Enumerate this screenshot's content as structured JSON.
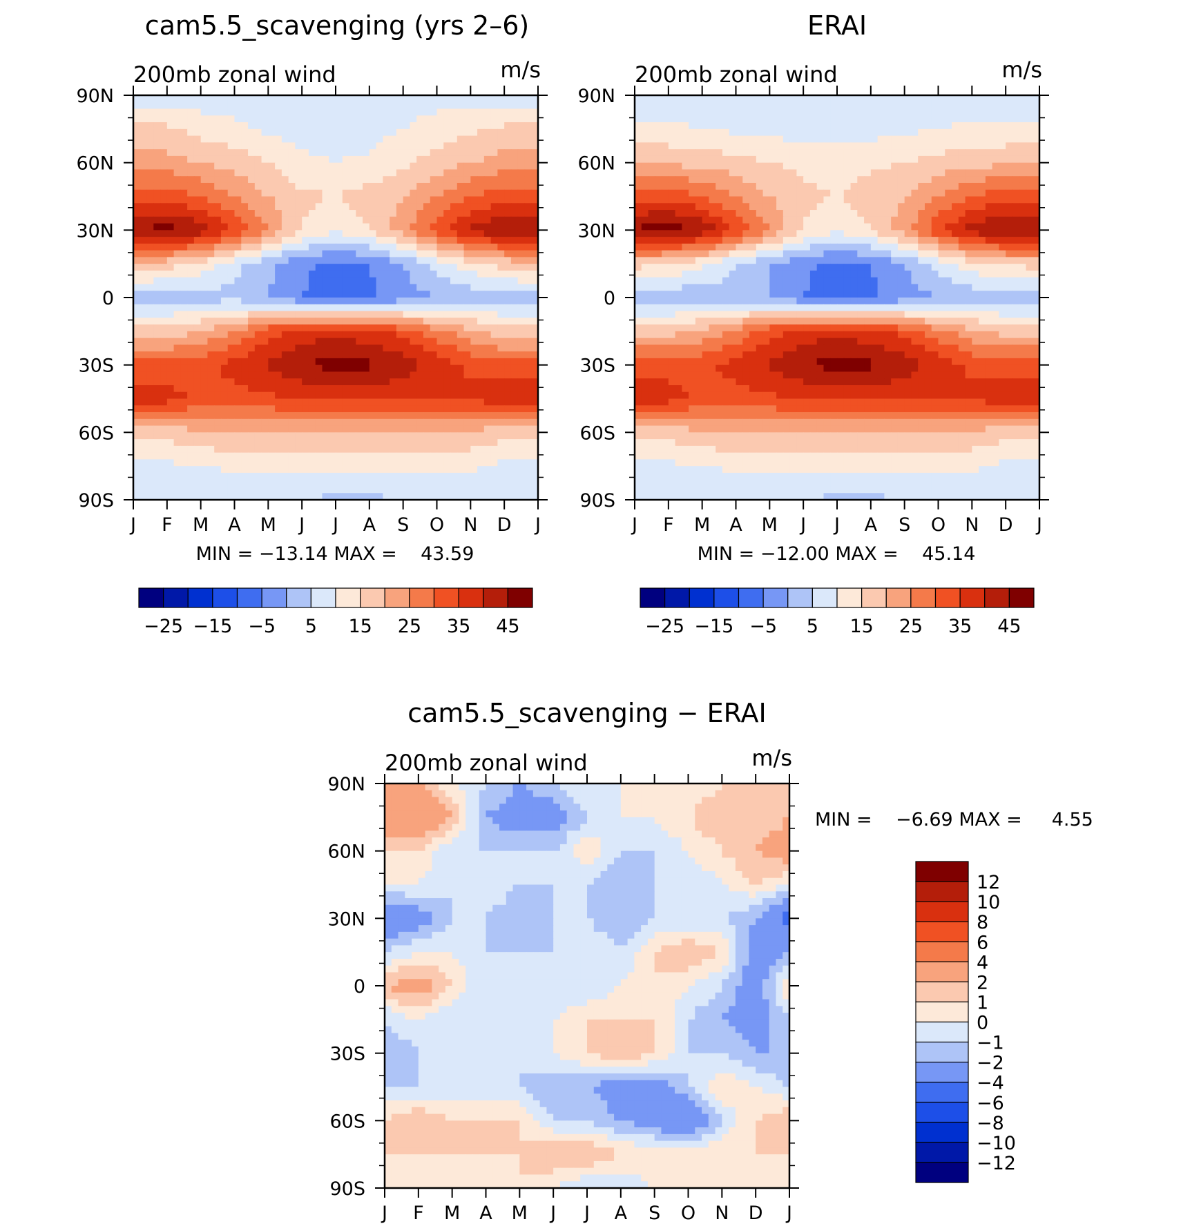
{
  "palette_abs": [
    "#00007f",
    "#0018a8",
    "#0030d0",
    "#1d4fe8",
    "#3f6df0",
    "#7797f5",
    "#aec4f7",
    "#dbe8fa",
    "#fde9d9",
    "#fbc9b0",
    "#f8a37d",
    "#f47a4a",
    "#f05123",
    "#d9300f",
    "#b41e0a",
    "#7f0000"
  ],
  "palette_diff": [
    "#00007f",
    "#0018a8",
    "#0030d0",
    "#1d4fe8",
    "#3f6df0",
    "#7797f5",
    "#aec4f7",
    "#dbe8fa",
    "#fde9d9",
    "#fbc9b0",
    "#f8a37d",
    "#f47a4a",
    "#f05123",
    "#d9300f",
    "#b41e0a",
    "#7f0000"
  ],
  "charts": [
    {
      "id": "model",
      "title": "cam5.5_scavenging (yrs 2–6)",
      "subtitle": "200mb zonal wind",
      "units": "m/s",
      "stats": "MIN = −13.14 MAX =    43.59",
      "min": -13.14,
      "max": 43.59,
      "xticks": [
        "J",
        "F",
        "M",
        "A",
        "M",
        "J",
        "J",
        "A",
        "S",
        "O",
        "N",
        "D",
        "J"
      ],
      "yticks": [
        "90N",
        "60N",
        "30N",
        "0",
        "30S",
        "60S",
        "90S"
      ],
      "colorbar_labels": [
        "−25",
        "−15",
        "−5",
        "5",
        "15",
        "25",
        "35",
        "45"
      ]
    },
    {
      "id": "obs",
      "title": "ERAI",
      "subtitle": "200mb zonal wind",
      "units": "m/s",
      "stats": "MIN = −12.00 MAX =    45.14",
      "min": -12.0,
      "max": 45.14,
      "xticks": [
        "J",
        "F",
        "M",
        "A",
        "M",
        "J",
        "J",
        "A",
        "S",
        "O",
        "N",
        "D",
        "J"
      ],
      "yticks": [
        "90N",
        "60N",
        "30N",
        "0",
        "30S",
        "60S",
        "90S"
      ],
      "colorbar_labels": [
        "−25",
        "−15",
        "−5",
        "5",
        "15",
        "25",
        "35",
        "45"
      ]
    },
    {
      "id": "diff",
      "title": "cam5.5_scavenging − ERAI",
      "subtitle": "200mb zonal wind",
      "units": "m/s",
      "stats": "MIN =    −6.69 MAX =     4.55",
      "min": -6.69,
      "max": 4.55,
      "xticks": [
        "J",
        "F",
        "M",
        "A",
        "M",
        "J",
        "J",
        "A",
        "S",
        "O",
        "N",
        "D",
        "J"
      ],
      "yticks": [
        "90N",
        "60N",
        "30N",
        "0",
        "30S",
        "60S",
        "90S"
      ],
      "colorbar_labels": [
        "12",
        "10",
        "8",
        "6",
        "4",
        "2",
        "1",
        "0",
        "−1",
        "−2",
        "−4",
        "−6",
        "−8",
        "−10",
        "−12"
      ]
    }
  ],
  "chart_data": [
    {
      "type": "heatmap",
      "title": "cam5.5_scavenging (yrs 2–6)",
      "subtitle": "200mb zonal wind",
      "units": "m/s",
      "x": [
        "J",
        "F",
        "M",
        "A",
        "M",
        "J",
        "J",
        "A",
        "S",
        "O",
        "N",
        "D",
        "J"
      ],
      "y": [
        90,
        75,
        60,
        45,
        30,
        15,
        0,
        -15,
        -30,
        -45,
        -60,
        -75,
        -90
      ],
      "ylim": [
        -90,
        90
      ],
      "levels": [
        -30,
        -25,
        -20,
        -15,
        -10,
        -5,
        0,
        5,
        10,
        15,
        20,
        25,
        30,
        35,
        40,
        45
      ],
      "values": [
        [
          2,
          2,
          2,
          3,
          4,
          4,
          4,
          3,
          3,
          3,
          2,
          2,
          2
        ],
        [
          12,
          11,
          8,
          6,
          4,
          3,
          2,
          3,
          5,
          7,
          9,
          11,
          12
        ],
        [
          18,
          17,
          15,
          13,
          10,
          6,
          5,
          6,
          9,
          12,
          15,
          17,
          18
        ],
        [
          28,
          28,
          25,
          20,
          15,
          11,
          10,
          12,
          15,
          20,
          25,
          28,
          28
        ],
        [
          40,
          42,
          38,
          30,
          20,
          10,
          6,
          10,
          18,
          28,
          36,
          40,
          40
        ],
        [
          14,
          12,
          8,
          2,
          -4,
          -9,
          -12,
          -10,
          -5,
          2,
          8,
          12,
          14
        ],
        [
          -3,
          -3,
          -2,
          -2,
          -5,
          -10,
          -12,
          -11,
          -8,
          -5,
          -3,
          -3,
          -3
        ],
        [
          12,
          12,
          15,
          20,
          28,
          32,
          33,
          32,
          28,
          22,
          16,
          12,
          12
        ],
        [
          27,
          27,
          28,
          32,
          36,
          40,
          42,
          41,
          38,
          33,
          29,
          27,
          27
        ],
        [
          33,
          32,
          29,
          28,
          29,
          30,
          30,
          31,
          31,
          30,
          31,
          33,
          33
        ],
        [
          12,
          12,
          14,
          15,
          15,
          15,
          14,
          14,
          14,
          15,
          14,
          12,
          12
        ],
        [
          4,
          4,
          5,
          6,
          7,
          7,
          6,
          6,
          6,
          7,
          6,
          4,
          4
        ],
        [
          0,
          0,
          0,
          0,
          0,
          0,
          -1,
          -1,
          0,
          0,
          0,
          0,
          0
        ]
      ]
    },
    {
      "type": "heatmap",
      "title": "ERAI",
      "subtitle": "200mb zonal wind",
      "units": "m/s",
      "x": [
        "J",
        "F",
        "M",
        "A",
        "M",
        "J",
        "J",
        "A",
        "S",
        "O",
        "N",
        "D",
        "J"
      ],
      "y": [
        90,
        75,
        60,
        45,
        30,
        15,
        0,
        -15,
        -30,
        -45,
        -60,
        -75,
        -90
      ],
      "ylim": [
        -90,
        90
      ],
      "levels": [
        -30,
        -25,
        -20,
        -15,
        -10,
        -5,
        0,
        5,
        10,
        15,
        20,
        25,
        30,
        35,
        40,
        45
      ],
      "values": [
        [
          2,
          2,
          2,
          2,
          2,
          2,
          2,
          2,
          2,
          2,
          2,
          2,
          2
        ],
        [
          6,
          6,
          5,
          4,
          3,
          3,
          3,
          3,
          4,
          5,
          6,
          6,
          6
        ],
        [
          14,
          14,
          13,
          12,
          10,
          9,
          8,
          9,
          10,
          12,
          13,
          14,
          14
        ],
        [
          28,
          28,
          25,
          20,
          15,
          11,
          10,
          12,
          15,
          20,
          25,
          28,
          28
        ],
        [
          41,
          43,
          39,
          30,
          20,
          10,
          6,
          10,
          18,
          29,
          37,
          41,
          41
        ],
        [
          12,
          10,
          6,
          0,
          -5,
          -9,
          -12,
          -10,
          -5,
          2,
          8,
          11,
          12
        ],
        [
          -4,
          -4,
          -3,
          -3,
          -5,
          -10,
          -12,
          -11,
          -8,
          -5,
          -3,
          -4,
          -4
        ],
        [
          12,
          13,
          16,
          21,
          28,
          32,
          33,
          32,
          28,
          22,
          16,
          13,
          12
        ],
        [
          28,
          28,
          29,
          32,
          36,
          40,
          42,
          41,
          38,
          33,
          29,
          28,
          28
        ],
        [
          33,
          32,
          29,
          28,
          29,
          30,
          30,
          31,
          31,
          30,
          31,
          33,
          33
        ],
        [
          12,
          12,
          14,
          15,
          15,
          15,
          14,
          14,
          14,
          15,
          14,
          12,
          12
        ],
        [
          4,
          4,
          5,
          6,
          7,
          7,
          6,
          6,
          6,
          7,
          6,
          4,
          4
        ],
        [
          0,
          0,
          0,
          0,
          0,
          0,
          -1,
          -1,
          0,
          0,
          0,
          0,
          0
        ]
      ]
    },
    {
      "type": "heatmap",
      "title": "cam5.5_scavenging − ERAI",
      "subtitle": "200mb zonal wind",
      "units": "m/s",
      "x": [
        "J",
        "F",
        "M",
        "A",
        "M",
        "J",
        "J",
        "A",
        "S",
        "O",
        "N",
        "D",
        "J"
      ],
      "y": [
        90,
        75,
        60,
        45,
        30,
        15,
        0,
        -15,
        -30,
        -45,
        -60,
        -75,
        -90
      ],
      "ylim": [
        -90,
        90
      ],
      "levels": [
        -12,
        -10,
        -8,
        -6,
        -4,
        -2,
        -1,
        0,
        1,
        2,
        4,
        6,
        8,
        10,
        12
      ],
      "values": [
        [
          2,
          2,
          0,
          -1,
          -2,
          -1,
          0,
          0,
          0,
          0,
          1,
          1,
          1
        ],
        [
          3,
          4,
          2,
          -2,
          -3,
          -3,
          -1,
          0,
          0,
          1,
          2,
          1,
          2
        ],
        [
          1,
          1,
          -1,
          -1,
          -1,
          -1,
          1,
          -1,
          -1,
          0,
          1,
          2,
          3
        ],
        [
          0,
          0,
          -1,
          0,
          -1,
          -1,
          -1,
          -2,
          -1,
          -1,
          0,
          1,
          0
        ],
        [
          -4,
          -3,
          -1,
          -1,
          -2,
          -1,
          -1,
          -2,
          -1,
          -1,
          -1,
          -2,
          -5
        ],
        [
          -1,
          0,
          0,
          -1,
          -1,
          -1,
          0,
          -1,
          1,
          2,
          1,
          -3,
          -2
        ],
        [
          2,
          3,
          1,
          -1,
          -1,
          -1,
          -1,
          0,
          1,
          0,
          -1,
          -3,
          1
        ],
        [
          -1,
          0,
          -1,
          -1,
          -1,
          0,
          1,
          1,
          1,
          -1,
          -2,
          -3,
          -1
        ],
        [
          -2,
          -1,
          -1,
          -1,
          -1,
          0,
          1,
          2,
          1,
          -1,
          -1,
          -2,
          -2
        ],
        [
          -1,
          -1,
          -1,
          -1,
          -1,
          -2,
          -2,
          -3,
          -3,
          -1,
          1,
          0,
          -1
        ],
        [
          1,
          2,
          1,
          1,
          1,
          -1,
          -1,
          -2,
          -3,
          -4,
          -1,
          1,
          2
        ],
        [
          1,
          1,
          1,
          1,
          1,
          2,
          2,
          1,
          1,
          1,
          1,
          1,
          1
        ],
        [
          0,
          0,
          0,
          0,
          1,
          0,
          -1,
          -1,
          0,
          0,
          0,
          0,
          0
        ]
      ]
    }
  ]
}
